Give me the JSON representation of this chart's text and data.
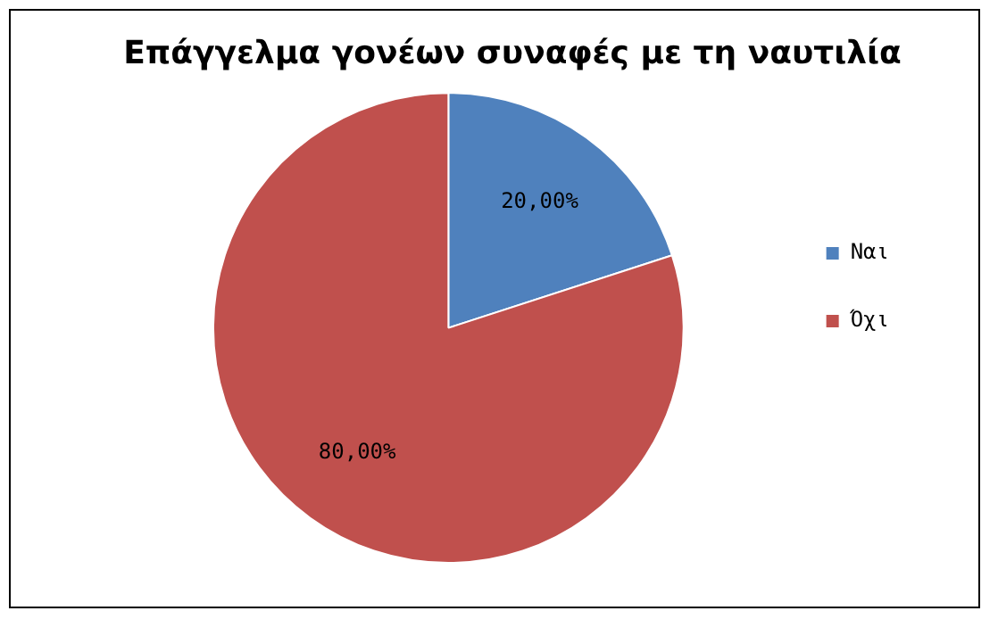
{
  "chart_data": {
    "type": "pie",
    "title": "Επάγγελμα γονέων συναφές με τη ναυτιλία",
    "categories": [
      "Ναι",
      "Όχι"
    ],
    "values": [
      20,
      80
    ],
    "value_labels": [
      "20,00%",
      "80,00%"
    ],
    "colors": [
      "#4f81bd",
      "#c0504d"
    ],
    "legend": "right"
  }
}
